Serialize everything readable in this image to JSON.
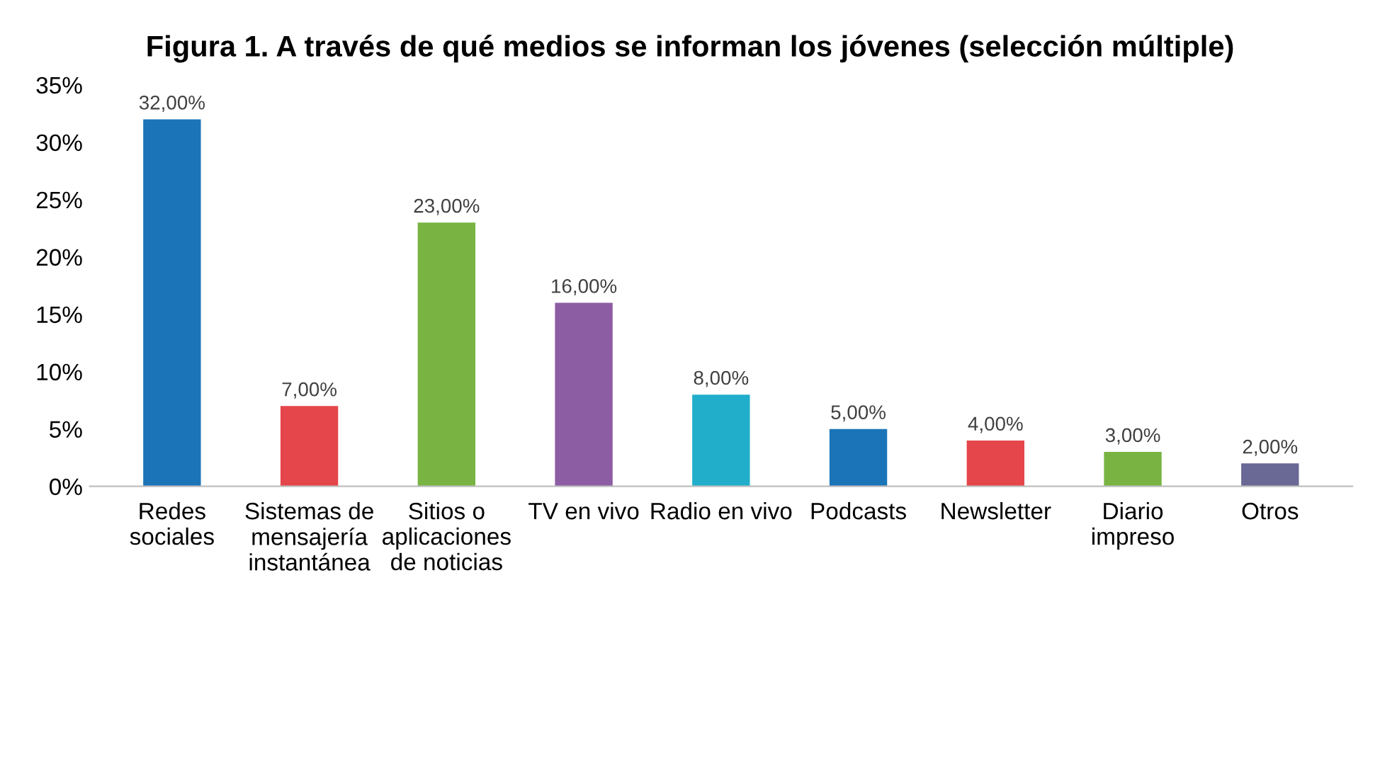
{
  "chart_data": {
    "type": "bar",
    "title": "Figura 1. A través de qué medios se informan los jóvenes (selección múltiple)",
    "categories": [
      "Redes sociales",
      "Sistemas de mensajería instantánea",
      "Sitios o aplicaciones de noticias",
      "TV en vivo",
      "Radio en vivo",
      "Podcasts",
      "Newsletter",
      "Diario impreso",
      "Otros"
    ],
    "values": [
      32,
      7,
      23,
      16,
      8,
      5,
      4,
      3,
      2
    ],
    "colors": [
      "#1b74b8",
      "#e5464b",
      "#79b443",
      "#8d5da4",
      "#21aecb",
      "#1b74b8",
      "#e5464b",
      "#79b443",
      "#6a6894"
    ],
    "value_labels": [
      "32,00%",
      "7,00%",
      "23,00%",
      "16,00%",
      "8,00%",
      "5,00%",
      "4,00%",
      "3,00%",
      "2,00%"
    ],
    "ylim": [
      0,
      35
    ],
    "yticks": [
      {
        "value": 0,
        "label": "0%"
      },
      {
        "value": 5,
        "label": "5%"
      },
      {
        "value": 10,
        "label": "10%"
      },
      {
        "value": 15,
        "label": "15%"
      },
      {
        "value": 20,
        "label": "20%"
      },
      {
        "value": 25,
        "label": "25%"
      },
      {
        "value": 30,
        "label": "30%"
      },
      {
        "value": 35,
        "label": "35%"
      }
    ]
  }
}
